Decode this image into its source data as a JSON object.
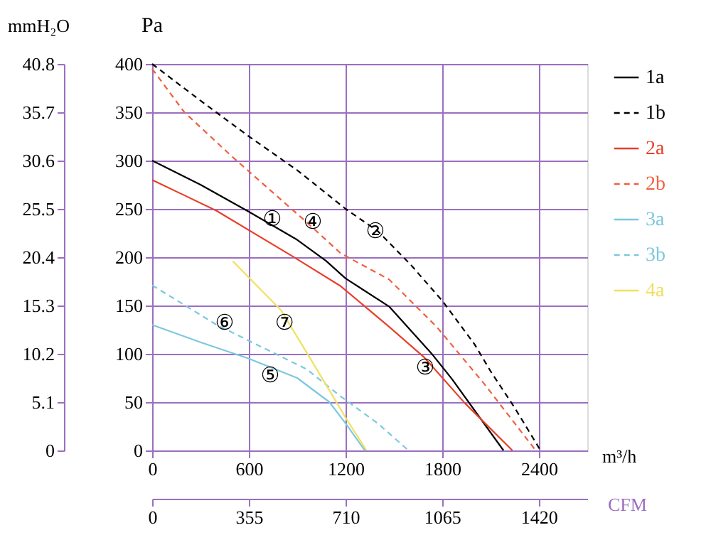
{
  "chart_data": {
    "type": "line",
    "xlabel": "m³/h",
    "ylabel": "Pa",
    "y2label": "mmH₂O",
    "x2label": "CFM",
    "xlim": [
      0,
      2700
    ],
    "xticks": [
      0,
      600,
      1200,
      1800,
      2400
    ],
    "ylim": [
      0,
      400
    ],
    "yticks": [
      0,
      50,
      100,
      150,
      200,
      250,
      300,
      350,
      400
    ],
    "y2lim": [
      0,
      40.8
    ],
    "y2ticks": [
      0,
      5.1,
      10.2,
      15.3,
      20.4,
      25.5,
      30.6,
      35.7,
      40.8
    ],
    "x2lim": [
      0,
      1598
    ],
    "x2ticks": [
      0,
      355,
      710,
      1065,
      1420
    ],
    "grid": true,
    "legend": "top right",
    "marker": "none",
    "series": [
      {
        "name": "1a",
        "color": "#000000",
        "line_style": "solid",
        "x": [
          0,
          300,
          600,
          900,
          1080,
          1200,
          1470,
          1740,
          1860,
          2180
        ],
        "values": [
          300,
          275,
          247,
          218,
          196,
          178,
          149,
          99,
          74,
          0
        ]
      },
      {
        "name": "1b",
        "color": "#000000",
        "line_style": "dashed",
        "x": [
          0,
          300,
          600,
          900,
          1200,
          1400,
          1600,
          1800,
          2000,
          2100,
          2250,
          2410
        ],
        "values": [
          400,
          362,
          325,
          290,
          250,
          227,
          193,
          155,
          110,
          82,
          44,
          0
        ]
      },
      {
        "name": "2a",
        "color": "#e8402a",
        "line_style": "solid",
        "x": [
          0,
          400,
          870,
          1170,
          1470,
          1690,
          1940,
          2235
        ],
        "values": [
          280,
          248,
          201,
          170,
          128,
          96,
          49,
          0
        ]
      },
      {
        "name": "2b",
        "color": "#f06040",
        "line_style": "dashed",
        "x": [
          0,
          200,
          490,
          960,
          1170,
          1470,
          1765,
          2060,
          2380
        ],
        "values": [
          395,
          350,
          305,
          236,
          204,
          177,
          128,
          69,
          0
        ]
      },
      {
        "name": "3a",
        "color": "#7cc8e0",
        "line_style": "solid",
        "x": [
          0,
          300,
          600,
          900,
          1100,
          1200,
          1320
        ],
        "values": [
          130,
          112,
          95,
          75,
          50,
          28,
          0
        ]
      },
      {
        "name": "3b",
        "color": "#7cc8e0",
        "line_style": "dashed",
        "x": [
          0,
          400,
          960,
          1170,
          1400,
          1590
        ],
        "values": [
          171,
          130,
          84,
          56,
          28,
          0
        ]
      },
      {
        "name": "4a",
        "color": "#f0e060",
        "line_style": "solid",
        "x": [
          500,
          800,
          960,
          1100,
          1200,
          1330
        ],
        "values": [
          196,
          145,
          101,
          62,
          34,
          0
        ]
      }
    ],
    "annotations": [
      {
        "text": "①",
        "x": 745,
        "y": 240
      },
      {
        "text": "②",
        "x": 1385,
        "y": 227
      },
      {
        "text": "③",
        "x": 1694,
        "y": 86
      },
      {
        "text": "④",
        "x": 997,
        "y": 237
      },
      {
        "text": "⑤",
        "x": 732,
        "y": 78
      },
      {
        "text": "⑥",
        "x": 450,
        "y": 132
      },
      {
        "text": "⑦",
        "x": 821,
        "y": 132
      }
    ]
  }
}
